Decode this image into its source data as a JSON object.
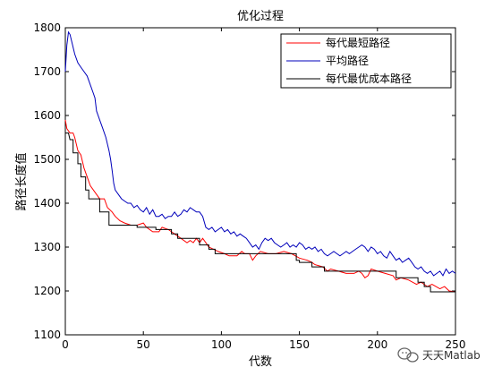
{
  "chart_data": {
    "type": "line",
    "title": "优化过程",
    "xlabel": "代数",
    "ylabel": "路径长度值",
    "xlim": [
      0,
      250
    ],
    "ylim": [
      1100,
      1800
    ],
    "xticks": [
      0,
      50,
      100,
      150,
      200,
      250
    ],
    "yticks": [
      1100,
      1200,
      1300,
      1400,
      1500,
      1600,
      1700,
      1800
    ],
    "grid": false,
    "legend": "top-right",
    "series": [
      {
        "name": "每代最短路径",
        "color": "#ff0000",
        "points": [
          [
            0,
            1590
          ],
          [
            1,
            1570
          ],
          [
            3,
            1560
          ],
          [
            5,
            1560
          ],
          [
            6,
            1550
          ],
          [
            8,
            1520
          ],
          [
            10,
            1510
          ],
          [
            12,
            1480
          ],
          [
            14,
            1460
          ],
          [
            16,
            1440
          ],
          [
            18,
            1430
          ],
          [
            20,
            1420
          ],
          [
            22,
            1410
          ],
          [
            25,
            1410
          ],
          [
            27,
            1390
          ],
          [
            30,
            1380
          ],
          [
            32,
            1370
          ],
          [
            35,
            1360
          ],
          [
            38,
            1355
          ],
          [
            42,
            1350
          ],
          [
            46,
            1350
          ],
          [
            50,
            1355
          ],
          [
            52,
            1345
          ],
          [
            56,
            1335
          ],
          [
            60,
            1335
          ],
          [
            62,
            1345
          ],
          [
            66,
            1340
          ],
          [
            70,
            1330
          ],
          [
            74,
            1320
          ],
          [
            78,
            1310
          ],
          [
            80,
            1315
          ],
          [
            82,
            1310
          ],
          [
            84,
            1320
          ],
          [
            86,
            1310
          ],
          [
            88,
            1320
          ],
          [
            90,
            1310
          ],
          [
            92,
            1300
          ],
          [
            95,
            1295
          ],
          [
            98,
            1290
          ],
          [
            102,
            1285
          ],
          [
            105,
            1280
          ],
          [
            110,
            1280
          ],
          [
            113,
            1290
          ],
          [
            115,
            1285
          ],
          [
            118,
            1285
          ],
          [
            120,
            1270
          ],
          [
            122,
            1280
          ],
          [
            125,
            1290
          ],
          [
            130,
            1285
          ],
          [
            135,
            1285
          ],
          [
            140,
            1290
          ],
          [
            145,
            1285
          ],
          [
            150,
            1275
          ],
          [
            155,
            1270
          ],
          [
            158,
            1265
          ],
          [
            160,
            1260
          ],
          [
            165,
            1255
          ],
          [
            168,
            1245
          ],
          [
            170,
            1250
          ],
          [
            175,
            1245
          ],
          [
            180,
            1240
          ],
          [
            185,
            1240
          ],
          [
            188,
            1245
          ],
          [
            190,
            1240
          ],
          [
            192,
            1230
          ],
          [
            194,
            1235
          ],
          [
            196,
            1250
          ],
          [
            200,
            1245
          ],
          [
            205,
            1240
          ],
          [
            210,
            1235
          ],
          [
            212,
            1225
          ],
          [
            215,
            1230
          ],
          [
            220,
            1225
          ],
          [
            225,
            1215
          ],
          [
            228,
            1220
          ],
          [
            232,
            1210
          ],
          [
            235,
            1215
          ],
          [
            240,
            1205
          ],
          [
            243,
            1210
          ],
          [
            246,
            1200
          ],
          [
            250,
            1198
          ]
        ]
      },
      {
        "name": "平均路径",
        "color": "#0000bb",
        "points": [
          [
            0,
            1700
          ],
          [
            1,
            1760
          ],
          [
            2,
            1790
          ],
          [
            3,
            1785
          ],
          [
            4,
            1770
          ],
          [
            6,
            1740
          ],
          [
            8,
            1720
          ],
          [
            10,
            1710
          ],
          [
            12,
            1700
          ],
          [
            14,
            1690
          ],
          [
            16,
            1670
          ],
          [
            18,
            1650
          ],
          [
            19,
            1640
          ],
          [
            20,
            1610
          ],
          [
            22,
            1590
          ],
          [
            24,
            1570
          ],
          [
            26,
            1550
          ],
          [
            28,
            1520
          ],
          [
            29,
            1500
          ],
          [
            30,
            1475
          ],
          [
            31,
            1445
          ],
          [
            32,
            1430
          ],
          [
            34,
            1420
          ],
          [
            36,
            1410
          ],
          [
            38,
            1405
          ],
          [
            40,
            1400
          ],
          [
            42,
            1400
          ],
          [
            44,
            1390
          ],
          [
            46,
            1395
          ],
          [
            48,
            1385
          ],
          [
            50,
            1380
          ],
          [
            52,
            1390
          ],
          [
            54,
            1375
          ],
          [
            56,
            1385
          ],
          [
            58,
            1370
          ],
          [
            60,
            1370
          ],
          [
            62,
            1375
          ],
          [
            64,
            1365
          ],
          [
            66,
            1370
          ],
          [
            68,
            1370
          ],
          [
            70,
            1380
          ],
          [
            72,
            1370
          ],
          [
            74,
            1375
          ],
          [
            76,
            1385
          ],
          [
            78,
            1380
          ],
          [
            80,
            1390
          ],
          [
            82,
            1385
          ],
          [
            84,
            1380
          ],
          [
            86,
            1380
          ],
          [
            88,
            1370
          ],
          [
            90,
            1345
          ],
          [
            92,
            1340
          ],
          [
            94,
            1345
          ],
          [
            96,
            1335
          ],
          [
            98,
            1340
          ],
          [
            100,
            1345
          ],
          [
            102,
            1335
          ],
          [
            104,
            1340
          ],
          [
            106,
            1330
          ],
          [
            108,
            1335
          ],
          [
            110,
            1325
          ],
          [
            112,
            1330
          ],
          [
            114,
            1325
          ],
          [
            116,
            1320
          ],
          [
            118,
            1310
          ],
          [
            120,
            1300
          ],
          [
            122,
            1305
          ],
          [
            124,
            1295
          ],
          [
            126,
            1310
          ],
          [
            128,
            1320
          ],
          [
            130,
            1315
          ],
          [
            132,
            1320
          ],
          [
            134,
            1310
          ],
          [
            136,
            1305
          ],
          [
            138,
            1300
          ],
          [
            140,
            1305
          ],
          [
            142,
            1310
          ],
          [
            144,
            1300
          ],
          [
            146,
            1305
          ],
          [
            148,
            1300
          ],
          [
            150,
            1310
          ],
          [
            152,
            1305
          ],
          [
            154,
            1295
          ],
          [
            156,
            1300
          ],
          [
            158,
            1295
          ],
          [
            160,
            1300
          ],
          [
            162,
            1290
          ],
          [
            164,
            1295
          ],
          [
            166,
            1285
          ],
          [
            168,
            1280
          ],
          [
            170,
            1285
          ],
          [
            172,
            1290
          ],
          [
            174,
            1285
          ],
          [
            176,
            1280
          ],
          [
            178,
            1285
          ],
          [
            180,
            1290
          ],
          [
            182,
            1285
          ],
          [
            184,
            1290
          ],
          [
            186,
            1295
          ],
          [
            188,
            1300
          ],
          [
            190,
            1305
          ],
          [
            192,
            1300
          ],
          [
            194,
            1290
          ],
          [
            196,
            1300
          ],
          [
            198,
            1295
          ],
          [
            200,
            1285
          ],
          [
            202,
            1290
          ],
          [
            204,
            1280
          ],
          [
            206,
            1275
          ],
          [
            208,
            1290
          ],
          [
            210,
            1280
          ],
          [
            212,
            1270
          ],
          [
            214,
            1275
          ],
          [
            216,
            1265
          ],
          [
            218,
            1270
          ],
          [
            220,
            1275
          ],
          [
            222,
            1265
          ],
          [
            224,
            1255
          ],
          [
            226,
            1250
          ],
          [
            228,
            1255
          ],
          [
            230,
            1245
          ],
          [
            232,
            1240
          ],
          [
            234,
            1245
          ],
          [
            236,
            1235
          ],
          [
            238,
            1240
          ],
          [
            240,
            1245
          ],
          [
            242,
            1235
          ],
          [
            244,
            1250
          ],
          [
            246,
            1240
          ],
          [
            248,
            1245
          ],
          [
            250,
            1240
          ]
        ]
      },
      {
        "name": "每代最优成本路径",
        "color": "#000000",
        "points": [
          [
            0,
            1560
          ],
          [
            2,
            1560
          ],
          [
            3,
            1545
          ],
          [
            5,
            1545
          ],
          [
            5,
            1515
          ],
          [
            8,
            1515
          ],
          [
            8,
            1490
          ],
          [
            10,
            1490
          ],
          [
            10,
            1460
          ],
          [
            13,
            1460
          ],
          [
            13,
            1430
          ],
          [
            15,
            1430
          ],
          [
            15,
            1410
          ],
          [
            22,
            1410
          ],
          [
            22,
            1380
          ],
          [
            28,
            1380
          ],
          [
            28,
            1350
          ],
          [
            46,
            1350
          ],
          [
            46,
            1345
          ],
          [
            58,
            1345
          ],
          [
            58,
            1340
          ],
          [
            68,
            1340
          ],
          [
            68,
            1330
          ],
          [
            72,
            1330
          ],
          [
            72,
            1320
          ],
          [
            86,
            1320
          ],
          [
            86,
            1305
          ],
          [
            92,
            1305
          ],
          [
            92,
            1295
          ],
          [
            96,
            1295
          ],
          [
            96,
            1285
          ],
          [
            148,
            1285
          ],
          [
            148,
            1270
          ],
          [
            150,
            1270
          ],
          [
            150,
            1265
          ],
          [
            158,
            1265
          ],
          [
            158,
            1255
          ],
          [
            166,
            1255
          ],
          [
            166,
            1245
          ],
          [
            212,
            1245
          ],
          [
            212,
            1230
          ],
          [
            226,
            1230
          ],
          [
            226,
            1220
          ],
          [
            230,
            1220
          ],
          [
            230,
            1210
          ],
          [
            234,
            1210
          ],
          [
            234,
            1198
          ],
          [
            250,
            1198
          ]
        ]
      }
    ]
  },
  "watermark": {
    "text": "天天Matlab",
    "icon": "wechat-bubble-icon"
  }
}
